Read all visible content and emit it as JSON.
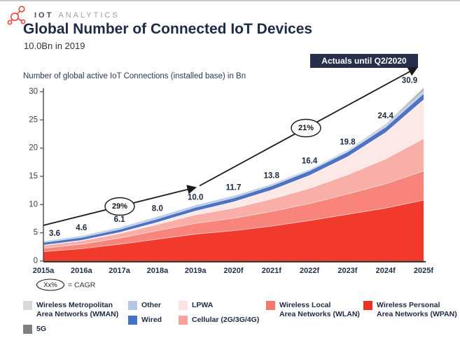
{
  "header": {
    "logo_primary": "IOT",
    "logo_secondary": "ANALYTICS",
    "title": "Global Number of Connected IoT Devices",
    "subtitle": "10.0Bn in 2019",
    "badge": "Actuals until Q2/2020"
  },
  "chart_data": {
    "type": "area",
    "stacked": true,
    "title": "Global Number of Connected IoT Devices",
    "axis_caption": "Number of global active IoT Connections (installed base) in Bn",
    "categories": [
      "2015a",
      "2016a",
      "2017a",
      "2018a",
      "2019a",
      "2020f",
      "2021f",
      "2022f",
      "2023f",
      "2024f",
      "2025f"
    ],
    "totals": [
      3.6,
      4.6,
      6.1,
      8.0,
      10.0,
      11.7,
      13.8,
      16.4,
      19.8,
      24.4,
      30.9
    ],
    "total_labels": [
      "3.6",
      "4.6",
      "6.1",
      "8.0",
      "10.0",
      "11.7",
      "13.8",
      "16.4",
      "19.8",
      "24.4",
      "30.9"
    ],
    "ylim": [
      0,
      30
    ],
    "y_ticks": [
      0,
      5,
      10,
      15,
      20,
      25,
      30
    ],
    "grid": false,
    "legend_position": "bottom",
    "series": [
      {
        "id": "wpan",
        "name": "Wireless Personal Area Networks (WPAN)",
        "color": "#f23a2c",
        "values": [
          1.7,
          2.2,
          3.0,
          3.9,
          4.8,
          5.4,
          6.2,
          7.2,
          8.3,
          9.4,
          10.8
        ]
      },
      {
        "id": "wlan",
        "name": "Wireless Local Area Networks (WLAN)",
        "color": "#f8847b",
        "values": [
          0.6,
          0.8,
          1.1,
          1.5,
          1.9,
          2.2,
          2.6,
          3.0,
          3.6,
          4.3,
          5.2
        ]
      },
      {
        "id": "cellular",
        "name": "Cellular (2G/3G/4G)",
        "color": "#f9aea7",
        "values": [
          0.5,
          0.6,
          0.8,
          1.1,
          1.5,
          1.8,
          2.2,
          2.7,
          3.4,
          4.4,
          5.7
        ]
      },
      {
        "id": "lpwa",
        "name": "LPWA",
        "color": "#fce8e6",
        "values": [
          0.05,
          0.1,
          0.2,
          0.4,
          0.7,
          1.1,
          1.6,
          2.3,
          3.2,
          4.7,
          6.9
        ]
      },
      {
        "id": "wired",
        "name": "Wired",
        "color": "#4d73c2",
        "values": [
          0.45,
          0.5,
          0.55,
          0.6,
          0.65,
          0.7,
          0.75,
          0.8,
          0.85,
          0.95,
          1.1
        ]
      },
      {
        "id": "other",
        "name": "Other",
        "color": "#b9cbe9",
        "values": [
          0.25,
          0.3,
          0.35,
          0.4,
          0.4,
          0.4,
          0.3,
          0.25,
          0.25,
          0.3,
          0.6
        ]
      },
      {
        "id": "5g",
        "name": "5G",
        "color": "#7f7f7f",
        "values": [
          0,
          0,
          0,
          0,
          0,
          0.05,
          0.05,
          0.05,
          0.1,
          0.15,
          0.3
        ]
      },
      {
        "id": "wman",
        "name": "Wireless Metropolitan Area Networks (WMAN)",
        "color": "#d8d8d8",
        "values": [
          0.05,
          0.1,
          0.1,
          0.1,
          0.05,
          0.05,
          0.1,
          0.1,
          0.1,
          0.2,
          0.3
        ]
      }
    ],
    "annotations": {
      "cagr_first": "29%",
      "cagr_second": "21%",
      "cagr_first_span": [
        "2015a",
        "2019a"
      ],
      "cagr_second_span": [
        "2019a",
        "2025f"
      ]
    }
  },
  "footnote": {
    "oval_label": "Xx%",
    "text": "= CAGR"
  },
  "legend": {
    "columns": [
      {
        "items": [
          {
            "id": "wman",
            "color": "#d9d9d9",
            "lines": [
              "Wireless Metropolitan",
              "Area Networks (WMAN)"
            ]
          },
          {
            "id": "5g",
            "color": "#7f7f7f",
            "lines": [
              "5G"
            ]
          }
        ]
      },
      {
        "items": [
          {
            "id": "other",
            "color": "#b4c7e7",
            "lines": [
              "Other"
            ]
          },
          {
            "id": "wired",
            "color": "#4472c4",
            "lines": [
              "Wired"
            ]
          }
        ]
      },
      {
        "items": [
          {
            "id": "lpwa",
            "color": "#fbe3e1",
            "lines": [
              "LPWA"
            ]
          },
          {
            "id": "cellular",
            "color": "#f8a29b",
            "lines": [
              "Cellular (2G/3G/4G)"
            ]
          }
        ]
      },
      {
        "items": [
          {
            "id": "wlan",
            "color": "#f4786e",
            "lines": [
              "Wireless Local",
              "Area Networks (WLAN)"
            ]
          }
        ]
      },
      {
        "items": [
          {
            "id": "wpan",
            "color": "#ee3123",
            "lines": [
              "Wireless Personal",
              "Area Networks (WPAN)"
            ]
          }
        ]
      }
    ]
  }
}
